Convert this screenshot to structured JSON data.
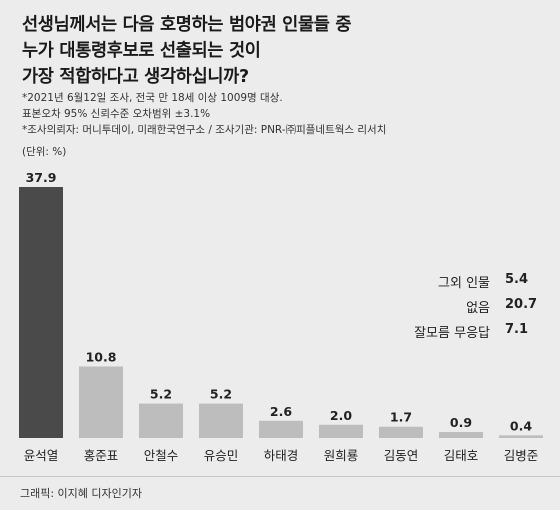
{
  "title_lines": [
    "선생님께서는 다음 호명하는 범야권 인물들 중",
    "누가 대통령후보로 선출되는 것이",
    "가장 적합하다고 생각하십니까?"
  ],
  "notes": [
    "*2021년 6월12일 조사, 전국 만 18세 이상 1009명 대상.",
    "표본오차 95% 신뢰수준 오차범위 ±3.1%",
    "*조사의뢰자: 머니투데이, 미래한국연구소 / 조사기관: PNR-㈜피플네트웍스 리서치"
  ],
  "unit": "(단위: %)",
  "colors": {
    "highlight_bar": "#4a4a4a",
    "bar": "#bdbdbd",
    "background": "#ececec",
    "text": "#222222"
  },
  "chart_data": {
    "type": "bar",
    "categories": [
      "윤석열",
      "홍준표",
      "안철수",
      "유승민",
      "하태경",
      "원희룡",
      "김동연",
      "김태호",
      "김병준"
    ],
    "values": [
      37.9,
      10.8,
      5.2,
      5.2,
      2.6,
      2.0,
      1.7,
      0.9,
      0.4
    ],
    "value_labels": [
      "37.9",
      "10.8",
      "5.2",
      "5.2",
      "2.6",
      "2.0",
      "1.7",
      "0.9",
      "0.4"
    ],
    "highlight_index": 0,
    "ylim": [
      0,
      37.9
    ]
  },
  "side_stats": [
    {
      "label": "그외 인물",
      "value": "5.4"
    },
    {
      "label": "없음",
      "value": "20.7"
    },
    {
      "label": "잘모름 무응답",
      "value": "7.1"
    }
  ],
  "credit": "그래픽: 이지혜 디자인기자"
}
